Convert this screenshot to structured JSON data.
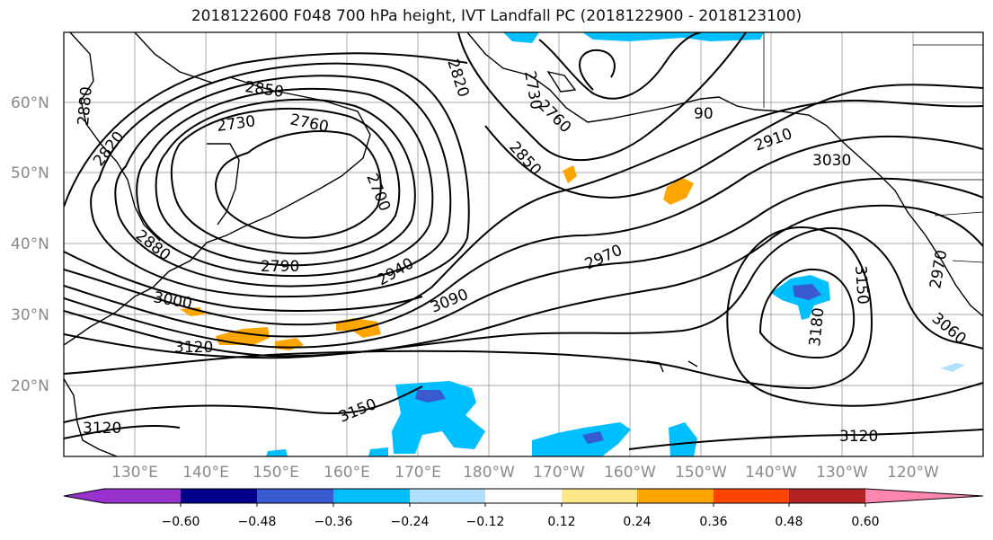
{
  "title": "2018122600 F048 700 hPa height, IVT Landfall PC (2018122900 - 2018123100)",
  "lat_labels": [
    "60°N",
    "50°N",
    "40°N",
    "30°N",
    "20°N"
  ],
  "lon_labels": [
    "130°E",
    "140°E",
    "150°E",
    "160°E",
    "170°E",
    "180°W",
    "170°W",
    "160°W",
    "150°W",
    "140°W",
    "130°W",
    "120°W"
  ],
  "contour_labels": [
    "2850",
    "2730",
    "2760",
    "2820",
    "2880",
    "2700",
    "2790",
    "2940",
    "3000",
    "3090",
    "2970",
    "3120",
    "3150",
    "2910",
    "3030",
    "2820",
    "2730",
    "2760",
    "2850",
    "90",
    "2880",
    "3150",
    "3180",
    "2970",
    "3060",
    "3120",
    "3120"
  ],
  "colorbar": {
    "ticks": [
      "−0.60",
      "−0.48",
      "−0.36",
      "−0.24",
      "−0.12",
      "0.12",
      "0.24",
      "0.36",
      "0.48",
      "0.60"
    ],
    "colors": [
      "#9932cc",
      "#00008b",
      "#3a5bd0",
      "#00bfff",
      "#b0e2ff",
      "#ffffff",
      "#ffe88a",
      "#ffa500",
      "#ff4500",
      "#b22222",
      "#ff86b0"
    ]
  }
}
